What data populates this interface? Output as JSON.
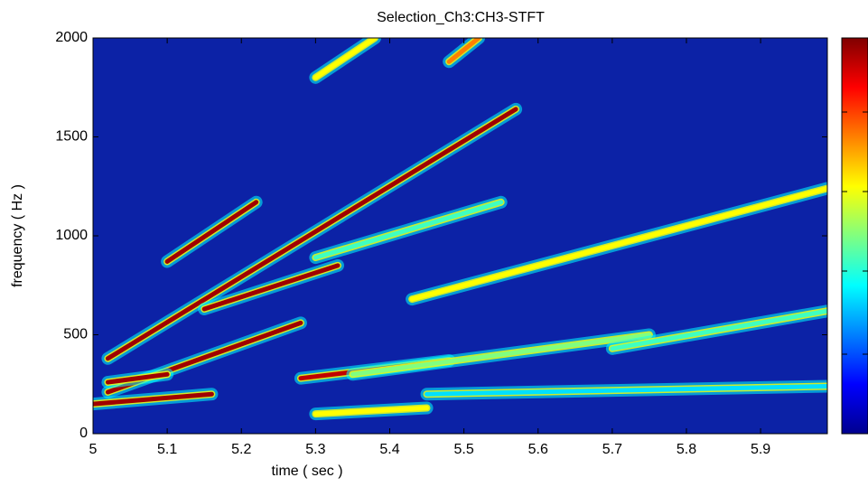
{
  "chart_data": {
    "type": "spectrogram",
    "title": "Selection_Ch3:CH3-STFT",
    "xlabel": "time ( sec )",
    "ylabel": "frequency ( Hz )",
    "xlim": [
      5,
      5.99
    ],
    "ylim": [
      0,
      2000
    ],
    "xticks": [
      5,
      5.1,
      5.2,
      5.3,
      5.4,
      5.5,
      5.6,
      5.7,
      5.8,
      5.9
    ],
    "yticks": [
      0,
      500,
      1000,
      1500,
      2000
    ],
    "background": "#0c22a6",
    "colormap": [
      "#00008f",
      "#0000ff",
      "#0080ff",
      "#00ffff",
      "#80ff80",
      "#ffff00",
      "#ff8000",
      "#ff0000",
      "#800000"
    ],
    "ridges": [
      {
        "x": [
          5.02,
          5.57
        ],
        "y": [
          380,
          1640
        ],
        "color": "#a00000"
      },
      {
        "x": [
          5.1,
          5.22
        ],
        "y": [
          870,
          1170
        ],
        "color": "#a00000"
      },
      {
        "x": [
          5.02,
          5.28
        ],
        "y": [
          210,
          560
        ],
        "color": "#a00000"
      },
      {
        "x": [
          5.15,
          5.33
        ],
        "y": [
          630,
          850
        ],
        "color": "#a00000"
      },
      {
        "x": [
          5.0,
          5.16
        ],
        "y": [
          150,
          200
        ],
        "color": "#a00000"
      },
      {
        "x": [
          5.02,
          5.1
        ],
        "y": [
          260,
          300
        ],
        "color": "#a00000"
      },
      {
        "x": [
          5.28,
          5.48
        ],
        "y": [
          280,
          370
        ],
        "color": "#c00000"
      },
      {
        "x": [
          5.43,
          5.99
        ],
        "y": [
          680,
          1240
        ],
        "color": "#ffff00"
      },
      {
        "x": [
          5.3,
          5.55
        ],
        "y": [
          890,
          1170
        ],
        "color": "#40ffc0"
      },
      {
        "x": [
          5.3,
          5.38
        ],
        "y": [
          1800,
          2000
        ],
        "color": "#ffff00"
      },
      {
        "x": [
          5.48,
          5.52
        ],
        "y": [
          1880,
          2000
        ],
        "color": "#ff8000"
      },
      {
        "x": [
          5.35,
          5.75
        ],
        "y": [
          300,
          500
        ],
        "color": "#80ff80"
      },
      {
        "x": [
          5.7,
          5.99
        ],
        "y": [
          430,
          620
        ],
        "color": "#40ffc0"
      },
      {
        "x": [
          5.3,
          5.45
        ],
        "y": [
          100,
          130
        ],
        "color": "#ffff00"
      },
      {
        "x": [
          5.45,
          5.99
        ],
        "y": [
          200,
          240
        ],
        "color": "#00e0ff"
      }
    ]
  }
}
